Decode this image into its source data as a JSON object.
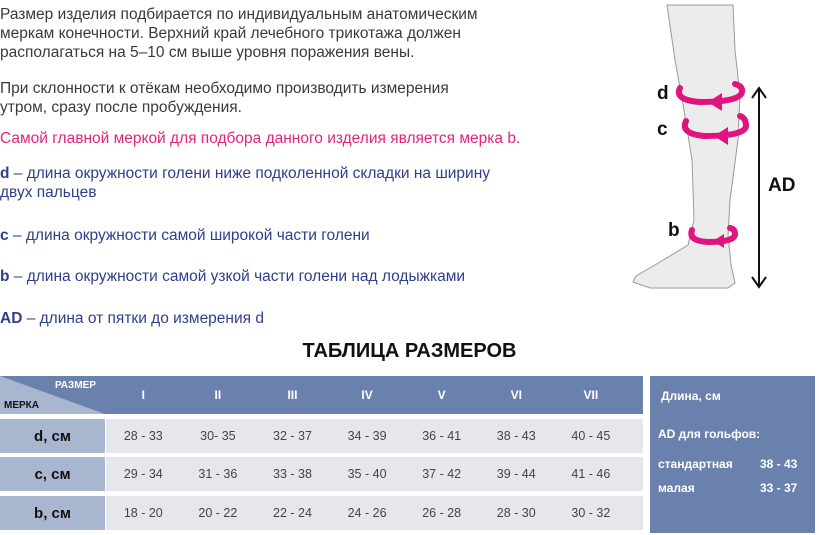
{
  "intro": {
    "para1": [
      "Размер изделия подбирается по индивидуальным анатомическим",
      "меркам конечности. Верхний край лечебного трикотажа должен",
      "располагаться на 5–10 см выше уровня поражения вены."
    ],
    "para2": [
      "При склонности к отёкам необходимо производить измерения",
      "утром, сразу после пробуждения."
    ],
    "highlight": "Самой главной меркой для подбора данного изделия является мерка b."
  },
  "definitions": [
    {
      "key": "d",
      "text": " – длина окружности голени ниже подколенной складки на ширину",
      "text2": "двух пальцев"
    },
    {
      "key": "c",
      "text": " – длина окружности самой широкой части голени"
    },
    {
      "key": "b",
      "text": " – длина окружности самой узкой части голени над лодыжками"
    },
    {
      "key": "AD",
      "text": " – длина от пятки до измерения d"
    }
  ],
  "diagram": {
    "labels": {
      "d": "d",
      "c": "c",
      "b": "b",
      "ad": "AD"
    },
    "accent": "#e0137f"
  },
  "table": {
    "title": "ТАБЛИЦА РАЗМЕРОВ",
    "corner_top": "РАЗМЕР",
    "corner_bottom": "МЕРКА",
    "sizes": [
      "I",
      "II",
      "III",
      "IV",
      "V",
      "VI",
      "VII"
    ],
    "rows": [
      {
        "label": "d, см",
        "values": [
          "28 - 33",
          "30- 35",
          "32 - 37",
          "34 - 39",
          "36 - 41",
          "38 - 43",
          "40 - 45"
        ]
      },
      {
        "label": "c, см",
        "values": [
          "29 - 34",
          "31 - 36",
          "33 - 38",
          "35 - 40",
          "37 - 42",
          "39 - 44",
          "41 - 46"
        ]
      },
      {
        "label": "b, см",
        "values": [
          "18 - 20",
          "20 - 22",
          "22 - 24",
          "24 - 26",
          "26 - 28",
          "28 - 30",
          "30 - 32"
        ]
      }
    ]
  },
  "length": {
    "title": "Длина, см",
    "subtitle": "AD для гольфов:",
    "items": [
      {
        "label": "стандартная",
        "value": "38 - 43"
      },
      {
        "label": "малая",
        "value": "33 - 37"
      }
    ]
  }
}
